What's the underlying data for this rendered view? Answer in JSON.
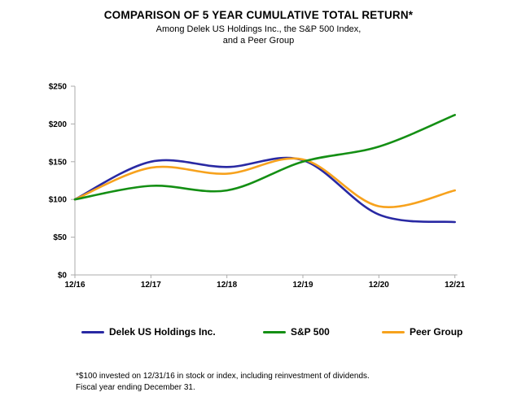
{
  "page": {
    "background": "#ffffff"
  },
  "header": {
    "title": "COMPARISON OF 5 YEAR CUMULATIVE TOTAL RETURN*",
    "subtitle_line1": "Among Delek US Holdings Inc., the S&P 500 Index,",
    "subtitle_line2": "and a Peer Group"
  },
  "chart_data": {
    "type": "line",
    "smoothed": true,
    "title": "COMPARISON OF 5 YEAR CUMULATIVE TOTAL RETURN*",
    "categories": [
      "12/16",
      "12/17",
      "12/18",
      "12/19",
      "12/20",
      "12/21"
    ],
    "series": [
      {
        "name": "Delek US Holdings Inc.",
        "color": "#2929A3",
        "values": [
          100,
          150,
          143,
          152,
          80,
          70
        ]
      },
      {
        "name": "S&P 500",
        "color": "#148F14",
        "values": [
          100,
          118,
          112,
          150,
          170,
          212
        ]
      },
      {
        "name": "Peer Group",
        "color": "#F7A21D",
        "values": [
          100,
          142,
          134,
          153,
          91,
          112
        ]
      }
    ],
    "y_tick_labels": [
      "$250",
      "$200",
      "$150",
      "$100",
      "$50",
      "$0"
    ],
    "y_ticks": [
      250,
      200,
      150,
      100,
      50,
      0
    ],
    "ylim": [
      0,
      250
    ],
    "xlabel": "",
    "ylabel": "",
    "grid": false,
    "legend_position": "bottom",
    "axis_color": "#ABABAB"
  },
  "footnote": {
    "line1": "*$100 invested on 12/31/16 in stock or index, including reinvestment of dividends.",
    "line2": "Fiscal year ending December 31."
  }
}
